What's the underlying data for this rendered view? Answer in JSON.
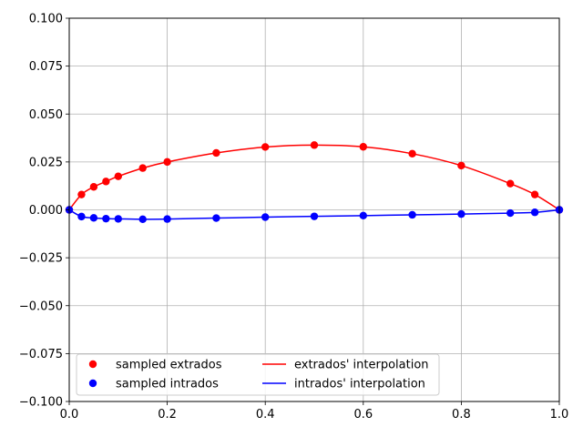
{
  "chart_data": {
    "type": "line",
    "title": "",
    "xlabel": "",
    "ylabel": "",
    "xlim": [
      0.0,
      1.0
    ],
    "ylim": [
      -0.1,
      0.1
    ],
    "xticks": [
      "0.0",
      "0.2",
      "0.4",
      "0.6",
      "0.8",
      "1.0"
    ],
    "yticks": [
      "0.100",
      "0.075",
      "0.050",
      "0.025",
      "0.000",
      "−0.025",
      "−0.050",
      "−0.075",
      "−0.100"
    ],
    "grid": true,
    "legend_position": "lower-center",
    "legend_columns": 2,
    "series": [
      {
        "name": "sampled extrados",
        "kind": "scatter",
        "color": "#ff0000",
        "x": [
          0.0,
          0.025,
          0.05,
          0.075,
          0.1,
          0.15,
          0.2,
          0.3,
          0.4,
          0.5,
          0.6,
          0.7,
          0.8,
          0.9,
          0.95,
          1.0
        ],
        "y": [
          0.0,
          0.008,
          0.012,
          0.0148,
          0.0175,
          0.0218,
          0.025,
          0.0297,
          0.0328,
          0.0338,
          0.0329,
          0.0293,
          0.0231,
          0.0137,
          0.008,
          0.0
        ]
      },
      {
        "name": "sampled intrados",
        "kind": "scatter",
        "color": "#0000ff",
        "x": [
          0.0,
          0.025,
          0.05,
          0.075,
          0.1,
          0.15,
          0.2,
          0.3,
          0.4,
          0.5,
          0.6,
          0.7,
          0.8,
          0.9,
          0.95,
          1.0
        ],
        "y": [
          0.0,
          -0.0035,
          -0.0042,
          -0.0046,
          -0.0047,
          -0.0049,
          -0.0048,
          -0.0043,
          -0.0038,
          -0.0034,
          -0.003,
          -0.0026,
          -0.0022,
          -0.0017,
          -0.0013,
          0.0
        ]
      },
      {
        "name": "extrados' interpolation",
        "kind": "line",
        "color": "#ff0000"
      },
      {
        "name": "intrados' interpolation",
        "kind": "line",
        "color": "#0000ff"
      }
    ]
  }
}
